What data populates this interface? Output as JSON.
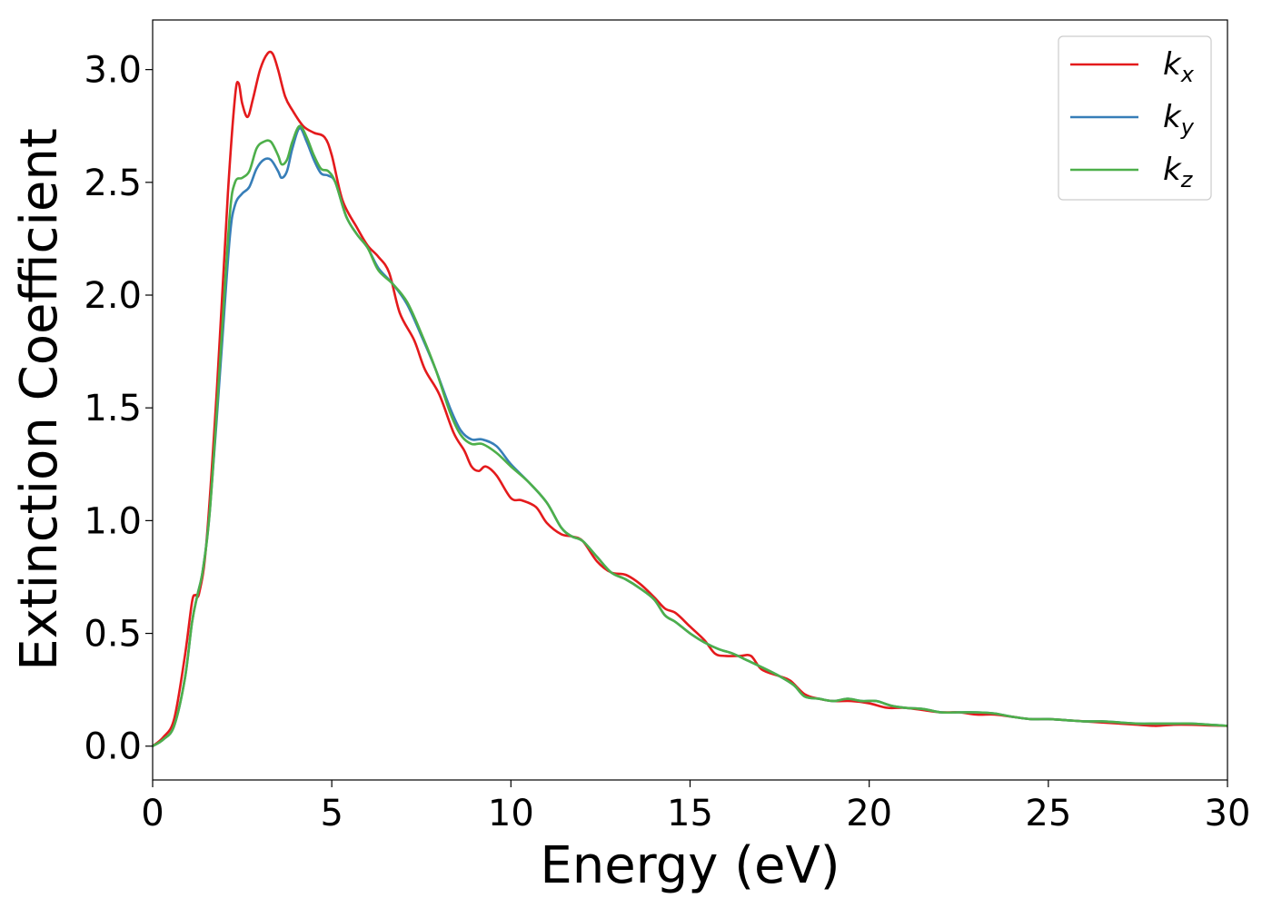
{
  "chart_data": {
    "type": "line",
    "title": "",
    "xlabel": "Energy (eV)",
    "ylabel": "Extinction Coefficient",
    "xlim": [
      0,
      30
    ],
    "ylim": [
      -0.15,
      3.22
    ],
    "xticks": [
      0,
      5,
      10,
      15,
      20,
      25,
      30
    ],
    "xtick_labels": [
      "0",
      "5",
      "10",
      "15",
      "20",
      "25",
      "30"
    ],
    "yticks": [
      0.0,
      0.5,
      1.0,
      1.5,
      2.0,
      2.5,
      3.0
    ],
    "ytick_labels": [
      "0.0",
      "0.5",
      "1.0",
      "1.5",
      "2.0",
      "2.5",
      "3.0"
    ],
    "grid": false,
    "legend_position": "top-right",
    "series": [
      {
        "name": "k_x",
        "legend_main": "k",
        "legend_sub": "x",
        "color": "#e41a1c",
        "points": [
          [
            0,
            0.0
          ],
          [
            0.3,
            0.04
          ],
          [
            0.6,
            0.12
          ],
          [
            0.9,
            0.4
          ],
          [
            1.1,
            0.64
          ],
          [
            1.2,
            0.67
          ],
          [
            1.3,
            0.68
          ],
          [
            1.5,
            0.9
          ],
          [
            1.8,
            1.6
          ],
          [
            2.1,
            2.45
          ],
          [
            2.3,
            2.88
          ],
          [
            2.4,
            2.94
          ],
          [
            2.5,
            2.85
          ],
          [
            2.65,
            2.79
          ],
          [
            2.8,
            2.87
          ],
          [
            3.0,
            3.0
          ],
          [
            3.2,
            3.07
          ],
          [
            3.35,
            3.07
          ],
          [
            3.5,
            3.0
          ],
          [
            3.7,
            2.88
          ],
          [
            3.9,
            2.82
          ],
          [
            4.2,
            2.75
          ],
          [
            4.5,
            2.72
          ],
          [
            4.8,
            2.7
          ],
          [
            5.0,
            2.62
          ],
          [
            5.3,
            2.42
          ],
          [
            5.7,
            2.3
          ],
          [
            6.0,
            2.22
          ],
          [
            6.3,
            2.17
          ],
          [
            6.6,
            2.1
          ],
          [
            6.9,
            1.92
          ],
          [
            7.3,
            1.8
          ],
          [
            7.6,
            1.67
          ],
          [
            8.0,
            1.56
          ],
          [
            8.4,
            1.39
          ],
          [
            8.7,
            1.31
          ],
          [
            8.9,
            1.24
          ],
          [
            9.1,
            1.22
          ],
          [
            9.3,
            1.24
          ],
          [
            9.6,
            1.2
          ],
          [
            10.0,
            1.1
          ],
          [
            10.3,
            1.09
          ],
          [
            10.7,
            1.06
          ],
          [
            11.0,
            0.99
          ],
          [
            11.4,
            0.94
          ],
          [
            11.7,
            0.93
          ],
          [
            12.0,
            0.91
          ],
          [
            12.4,
            0.82
          ],
          [
            12.8,
            0.77
          ],
          [
            13.2,
            0.76
          ],
          [
            13.6,
            0.72
          ],
          [
            14.0,
            0.66
          ],
          [
            14.3,
            0.61
          ],
          [
            14.6,
            0.59
          ],
          [
            15.0,
            0.53
          ],
          [
            15.4,
            0.47
          ],
          [
            15.7,
            0.41
          ],
          [
            16.0,
            0.4
          ],
          [
            16.4,
            0.4
          ],
          [
            16.7,
            0.4
          ],
          [
            17.0,
            0.34
          ],
          [
            17.5,
            0.31
          ],
          [
            17.8,
            0.29
          ],
          [
            18.2,
            0.23
          ],
          [
            18.6,
            0.21
          ],
          [
            19.0,
            0.2
          ],
          [
            19.5,
            0.2
          ],
          [
            20.0,
            0.19
          ],
          [
            20.5,
            0.17
          ],
          [
            21.0,
            0.17
          ],
          [
            21.5,
            0.16
          ],
          [
            22.0,
            0.15
          ],
          [
            22.5,
            0.15
          ],
          [
            23.0,
            0.14
          ],
          [
            23.5,
            0.14
          ],
          [
            24.0,
            0.13
          ],
          [
            24.5,
            0.12
          ],
          [
            25.0,
            0.12
          ],
          [
            25.5,
            0.115
          ],
          [
            26.0,
            0.11
          ],
          [
            26.5,
            0.105
          ],
          [
            27.0,
            0.1
          ],
          [
            27.5,
            0.095
          ],
          [
            28.0,
            0.09
          ],
          [
            28.5,
            0.095
          ],
          [
            29.0,
            0.095
          ],
          [
            29.5,
            0.092
          ],
          [
            30.0,
            0.09
          ]
        ]
      },
      {
        "name": "k_y",
        "legend_main": "k",
        "legend_sub": "y",
        "color": "#377eb8",
        "points": [
          [
            0,
            0.0
          ],
          [
            0.3,
            0.03
          ],
          [
            0.6,
            0.09
          ],
          [
            0.9,
            0.3
          ],
          [
            1.1,
            0.55
          ],
          [
            1.25,
            0.67
          ],
          [
            1.4,
            0.78
          ],
          [
            1.6,
            1.05
          ],
          [
            1.9,
            1.7
          ],
          [
            2.15,
            2.25
          ],
          [
            2.3,
            2.4
          ],
          [
            2.5,
            2.45
          ],
          [
            2.7,
            2.48
          ],
          [
            2.9,
            2.56
          ],
          [
            3.1,
            2.6
          ],
          [
            3.3,
            2.6
          ],
          [
            3.5,
            2.55
          ],
          [
            3.6,
            2.52
          ],
          [
            3.75,
            2.55
          ],
          [
            3.9,
            2.65
          ],
          [
            4.1,
            2.74
          ],
          [
            4.3,
            2.68
          ],
          [
            4.5,
            2.6
          ],
          [
            4.7,
            2.54
          ],
          [
            4.9,
            2.53
          ],
          [
            5.1,
            2.5
          ],
          [
            5.4,
            2.35
          ],
          [
            5.7,
            2.27
          ],
          [
            6.0,
            2.21
          ],
          [
            6.3,
            2.12
          ],
          [
            6.7,
            2.05
          ],
          [
            7.1,
            1.96
          ],
          [
            7.5,
            1.82
          ],
          [
            7.9,
            1.67
          ],
          [
            8.3,
            1.5
          ],
          [
            8.6,
            1.4
          ],
          [
            8.9,
            1.36
          ],
          [
            9.2,
            1.36
          ],
          [
            9.6,
            1.33
          ],
          [
            10.0,
            1.25
          ],
          [
            10.5,
            1.17
          ],
          [
            11.0,
            1.08
          ],
          [
            11.4,
            0.97
          ],
          [
            11.7,
            0.93
          ],
          [
            12.0,
            0.91
          ],
          [
            12.4,
            0.84
          ],
          [
            12.8,
            0.77
          ],
          [
            13.2,
            0.74
          ],
          [
            13.6,
            0.7
          ],
          [
            14.0,
            0.65
          ],
          [
            14.3,
            0.58
          ],
          [
            14.6,
            0.55
          ],
          [
            15.0,
            0.5
          ],
          [
            15.4,
            0.46
          ],
          [
            15.8,
            0.43
          ],
          [
            16.2,
            0.41
          ],
          [
            16.6,
            0.38
          ],
          [
            17.0,
            0.35
          ],
          [
            17.5,
            0.31
          ],
          [
            17.9,
            0.27
          ],
          [
            18.2,
            0.22
          ],
          [
            18.6,
            0.21
          ],
          [
            19.0,
            0.2
          ],
          [
            19.4,
            0.21
          ],
          [
            19.8,
            0.2
          ],
          [
            20.2,
            0.2
          ],
          [
            20.6,
            0.18
          ],
          [
            21.0,
            0.17
          ],
          [
            21.5,
            0.165
          ],
          [
            22.0,
            0.15
          ],
          [
            22.5,
            0.15
          ],
          [
            23.0,
            0.15
          ],
          [
            23.5,
            0.145
          ],
          [
            24.0,
            0.13
          ],
          [
            24.5,
            0.12
          ],
          [
            25.0,
            0.12
          ],
          [
            25.5,
            0.115
          ],
          [
            26.0,
            0.11
          ],
          [
            26.5,
            0.11
          ],
          [
            27.0,
            0.105
          ],
          [
            27.5,
            0.1
          ],
          [
            28.0,
            0.1
          ],
          [
            28.5,
            0.1
          ],
          [
            29.0,
            0.1
          ],
          [
            29.5,
            0.095
          ],
          [
            30.0,
            0.09
          ]
        ]
      },
      {
        "name": "k_z",
        "legend_main": "k",
        "legend_sub": "z",
        "color": "#4daf4a",
        "points": [
          [
            0,
            0.0
          ],
          [
            0.3,
            0.03
          ],
          [
            0.6,
            0.09
          ],
          [
            0.9,
            0.3
          ],
          [
            1.1,
            0.55
          ],
          [
            1.25,
            0.67
          ],
          [
            1.4,
            0.78
          ],
          [
            1.6,
            1.05
          ],
          [
            1.9,
            1.75
          ],
          [
            2.15,
            2.35
          ],
          [
            2.3,
            2.5
          ],
          [
            2.5,
            2.52
          ],
          [
            2.7,
            2.55
          ],
          [
            2.9,
            2.65
          ],
          [
            3.1,
            2.68
          ],
          [
            3.3,
            2.68
          ],
          [
            3.5,
            2.62
          ],
          [
            3.6,
            2.58
          ],
          [
            3.75,
            2.6
          ],
          [
            3.9,
            2.68
          ],
          [
            4.1,
            2.75
          ],
          [
            4.3,
            2.7
          ],
          [
            4.5,
            2.62
          ],
          [
            4.7,
            2.56
          ],
          [
            4.9,
            2.55
          ],
          [
            5.1,
            2.5
          ],
          [
            5.4,
            2.35
          ],
          [
            5.7,
            2.27
          ],
          [
            6.0,
            2.21
          ],
          [
            6.3,
            2.11
          ],
          [
            6.7,
            2.05
          ],
          [
            7.1,
            1.97
          ],
          [
            7.5,
            1.83
          ],
          [
            7.9,
            1.67
          ],
          [
            8.3,
            1.48
          ],
          [
            8.6,
            1.38
          ],
          [
            8.9,
            1.34
          ],
          [
            9.2,
            1.34
          ],
          [
            9.6,
            1.3
          ],
          [
            10.0,
            1.24
          ],
          [
            10.5,
            1.17
          ],
          [
            11.0,
            1.08
          ],
          [
            11.4,
            0.97
          ],
          [
            11.7,
            0.93
          ],
          [
            12.0,
            0.91
          ],
          [
            12.4,
            0.84
          ],
          [
            12.8,
            0.77
          ],
          [
            13.2,
            0.74
          ],
          [
            13.6,
            0.7
          ],
          [
            14.0,
            0.65
          ],
          [
            14.3,
            0.58
          ],
          [
            14.6,
            0.55
          ],
          [
            15.0,
            0.5
          ],
          [
            15.4,
            0.46
          ],
          [
            15.8,
            0.43
          ],
          [
            16.2,
            0.41
          ],
          [
            16.6,
            0.38
          ],
          [
            17.0,
            0.35
          ],
          [
            17.5,
            0.31
          ],
          [
            17.9,
            0.27
          ],
          [
            18.2,
            0.22
          ],
          [
            18.6,
            0.21
          ],
          [
            19.0,
            0.2
          ],
          [
            19.4,
            0.21
          ],
          [
            19.8,
            0.2
          ],
          [
            20.2,
            0.2
          ],
          [
            20.6,
            0.18
          ],
          [
            21.0,
            0.17
          ],
          [
            21.5,
            0.165
          ],
          [
            22.0,
            0.15
          ],
          [
            22.5,
            0.15
          ],
          [
            23.0,
            0.15
          ],
          [
            23.5,
            0.145
          ],
          [
            24.0,
            0.13
          ],
          [
            24.5,
            0.12
          ],
          [
            25.0,
            0.12
          ],
          [
            25.5,
            0.115
          ],
          [
            26.0,
            0.11
          ],
          [
            26.5,
            0.11
          ],
          [
            27.0,
            0.105
          ],
          [
            27.5,
            0.1
          ],
          [
            28.0,
            0.1
          ],
          [
            28.5,
            0.1
          ],
          [
            29.0,
            0.1
          ],
          [
            29.5,
            0.095
          ],
          [
            30.0,
            0.09
          ]
        ]
      }
    ]
  }
}
